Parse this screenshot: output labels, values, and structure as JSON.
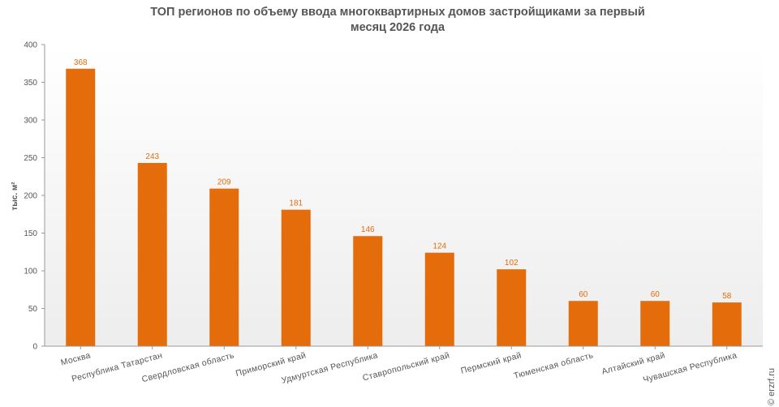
{
  "chart_data": {
    "type": "bar",
    "title_lines": [
      "ТОП регионов по объему ввода многоквартирных домов застройщиками за первый",
      "месяц 2026 года"
    ],
    "ylabel": "тыс. м²",
    "ylim": [
      0,
      400
    ],
    "yticks": [
      0,
      50,
      100,
      150,
      200,
      250,
      300,
      350,
      400
    ],
    "grid": false,
    "categories": [
      "Москва",
      "Республика Татарстан",
      "Свердловская область",
      "Приморский край",
      "Удмуртская Республика",
      "Ставропольский край",
      "Пермский край",
      "Тюменская область",
      "Алтайский край",
      "Чувашская Республика"
    ],
    "values": [
      368,
      243,
      209,
      181,
      146,
      124,
      102,
      60,
      60,
      58
    ],
    "data_labels": [
      "368",
      "243",
      "209",
      "181",
      "146",
      "124",
      "102",
      "60",
      "60",
      "58"
    ],
    "bar_color": "#e46c0a",
    "plot_background": "#f5f5f5"
  },
  "copyright": "© erzrf.ru"
}
